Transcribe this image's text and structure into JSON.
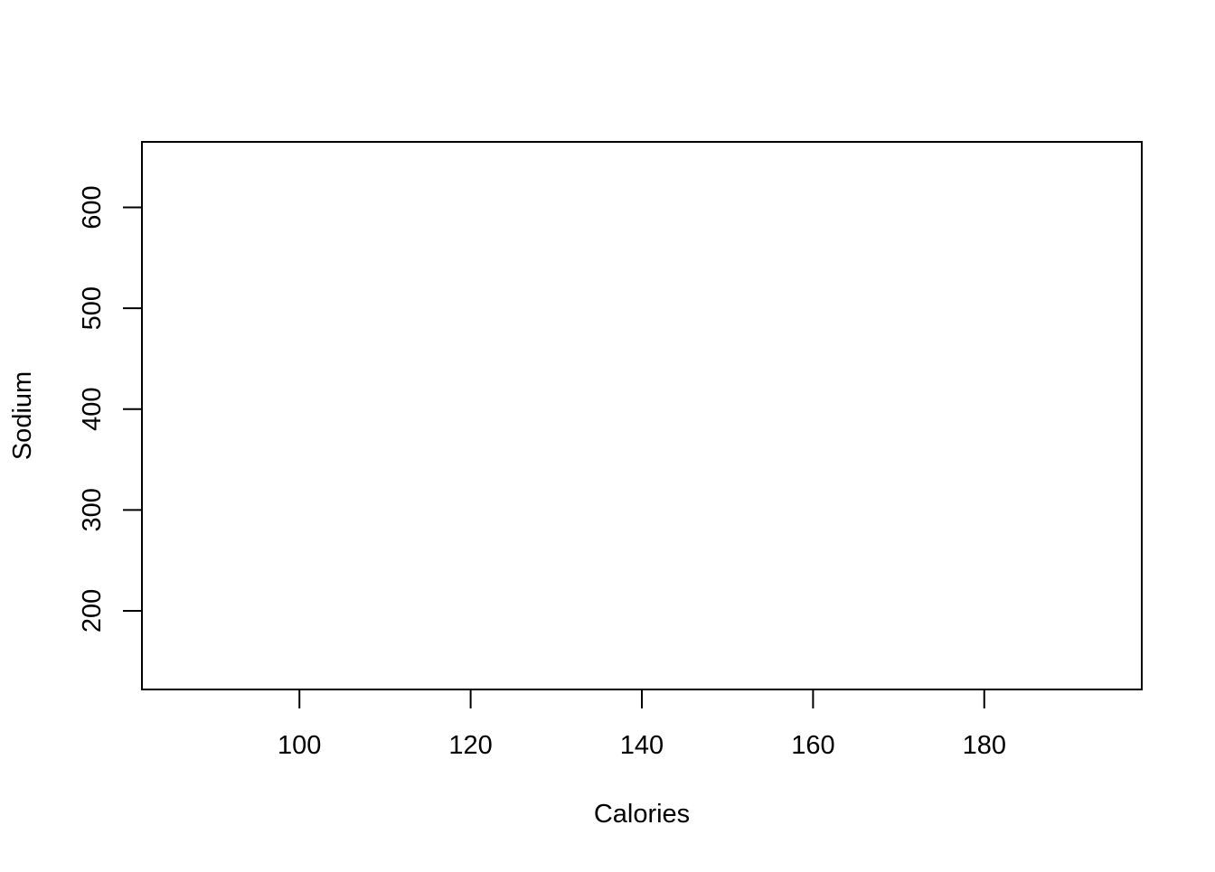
{
  "chart_data": {
    "type": "scatter",
    "title": "",
    "xlabel": "Calories",
    "ylabel": "Sodium",
    "xlim": [
      81.6,
      198.4
    ],
    "ylim": [
      122,
      665
    ],
    "x_ticks": [
      100,
      120,
      140,
      160,
      180
    ],
    "y_ticks": [
      200,
      300,
      400,
      500,
      600
    ],
    "x_tick_labels": [
      "100",
      "120",
      "140",
      "160",
      "180"
    ],
    "y_tick_labels": [
      "200",
      "300",
      "400",
      "500",
      "600"
    ],
    "grid": false,
    "legend": "none",
    "series": [
      {
        "x": [],
        "y": []
      }
    ],
    "colors": {
      "axis": "#000000",
      "background": "#ffffff"
    }
  }
}
